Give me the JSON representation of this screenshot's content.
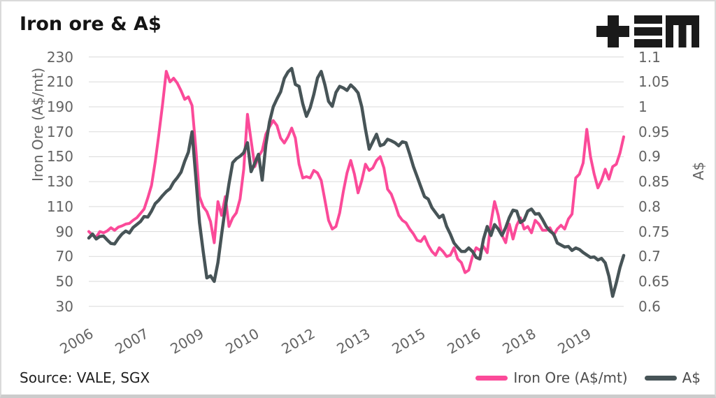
{
  "title": "Iron ore & A$",
  "logo": {
    "name": "tem-logo"
  },
  "source": "Source: VALE, SGX",
  "legend": [
    {
      "label": "Iron Ore (A$/mt)",
      "color": "#fb4a99"
    },
    {
      "label": "A$",
      "color": "#475457"
    }
  ],
  "chart_data": {
    "type": "line",
    "title": "Iron ore & A$",
    "x_axis": {
      "range": [
        2006.0,
        2020.5
      ],
      "tick_positions": [
        2006,
        2007.5,
        2009,
        2010.5,
        2012,
        2013.5,
        2015,
        2016.5,
        2018,
        2019.5
      ],
      "tick_labels": [
        "2006",
        "2007",
        "2009",
        "2010",
        "2012",
        "2013",
        "2015",
        "2016",
        "2018",
        "2019"
      ]
    },
    "left_axis": {
      "label": "Iron Ore (A$/mt)",
      "range": [
        30,
        230
      ],
      "ticks": [
        230,
        210,
        190,
        170,
        150,
        130,
        110,
        90,
        70,
        50,
        30
      ]
    },
    "right_axis": {
      "label": "A$",
      "range": [
        0.6,
        1.1
      ],
      "ticks": [
        1.1,
        1.05,
        1,
        0.95,
        0.9,
        0.85,
        0.8,
        0.75,
        0.7,
        0.65,
        0.6
      ]
    },
    "grid": "horizontal",
    "legend_position": "bottom-right",
    "series": [
      {
        "name": "Iron Ore (A$/mt)",
        "axis": "left",
        "color": "#fb4a99",
        "stroke_width": 4,
        "t_start": 2006.0,
        "t_step": 0.1,
        "values": [
          90,
          87,
          85.5,
          90,
          89,
          90.5,
          93,
          91,
          93.5,
          94.5,
          96,
          96.5,
          99,
          101,
          104.5,
          108,
          117,
          127,
          146,
          168,
          192,
          218.5,
          210,
          213,
          209,
          203,
          196,
          198,
          191,
          157,
          118,
          110,
          106,
          98,
          81,
          114,
          103,
          118,
          94,
          101,
          105,
          116,
          140,
          184,
          163,
          142,
          150,
          155,
          168,
          174,
          179,
          175,
          165,
          161,
          166,
          173,
          165,
          144,
          133,
          134,
          133,
          139,
          137,
          131,
          115,
          99,
          92,
          94,
          105,
          122,
          137,
          147,
          136,
          121,
          131,
          144,
          139,
          141,
          147,
          150,
          141,
          124,
          120,
          112,
          103,
          99,
          97,
          92,
          88,
          83,
          82,
          86,
          79,
          74,
          71,
          77,
          74,
          70,
          71,
          77,
          68,
          65,
          57,
          59,
          70,
          77,
          75,
          78,
          73,
          97,
          114,
          103,
          87,
          81,
          96,
          84,
          95,
          101,
          92,
          94,
          89,
          99,
          96,
          91,
          91,
          93,
          87,
          92,
          95,
          92,
          100,
          104,
          133,
          136,
          145,
          172,
          150,
          136,
          125,
          131,
          140,
          132,
          142,
          144,
          153,
          166
        ]
      },
      {
        "name": "A$",
        "axis": "right",
        "color": "#475457",
        "stroke_width": 4.5,
        "t_start": 2006.0,
        "t_step": 0.1,
        "values": [
          0.737,
          0.745,
          0.735,
          0.74,
          0.741,
          0.733,
          0.726,
          0.725,
          0.736,
          0.745,
          0.751,
          0.747,
          0.758,
          0.764,
          0.77,
          0.78,
          0.779,
          0.791,
          0.806,
          0.813,
          0.822,
          0.83,
          0.836,
          0.849,
          0.858,
          0.869,
          0.891,
          0.909,
          0.95,
          0.86,
          0.768,
          0.71,
          0.657,
          0.661,
          0.65,
          0.688,
          0.744,
          0.798,
          0.846,
          0.888,
          0.896,
          0.901,
          0.908,
          0.928,
          0.87,
          0.887,
          0.905,
          0.853,
          0.924,
          0.97,
          1.0,
          1.016,
          1.03,
          1.057,
          1.07,
          1.077,
          1.045,
          1.041,
          1.006,
          0.981,
          0.998,
          1.025,
          1.058,
          1.071,
          1.044,
          1.011,
          1.001,
          1.029,
          1.041,
          1.038,
          1.033,
          1.044,
          1.037,
          1.028,
          1.0,
          0.955,
          0.915,
          0.93,
          0.945,
          0.922,
          0.925,
          0.935,
          0.932,
          0.928,
          0.922,
          0.93,
          0.928,
          0.905,
          0.88,
          0.86,
          0.84,
          0.82,
          0.815,
          0.798,
          0.788,
          0.778,
          0.783,
          0.76,
          0.745,
          0.727,
          0.718,
          0.71,
          0.71,
          0.717,
          0.71,
          0.698,
          0.695,
          0.735,
          0.76,
          0.742,
          0.764,
          0.755,
          0.742,
          0.758,
          0.778,
          0.793,
          0.791,
          0.768,
          0.773,
          0.791,
          0.795,
          0.785,
          0.786,
          0.774,
          0.76,
          0.751,
          0.745,
          0.727,
          0.723,
          0.719,
          0.72,
          0.712,
          0.717,
          0.714,
          0.708,
          0.703,
          0.698,
          0.699,
          0.693,
          0.696,
          0.687,
          0.66,
          0.62,
          0.647,
          0.678,
          0.702
        ]
      }
    ]
  }
}
